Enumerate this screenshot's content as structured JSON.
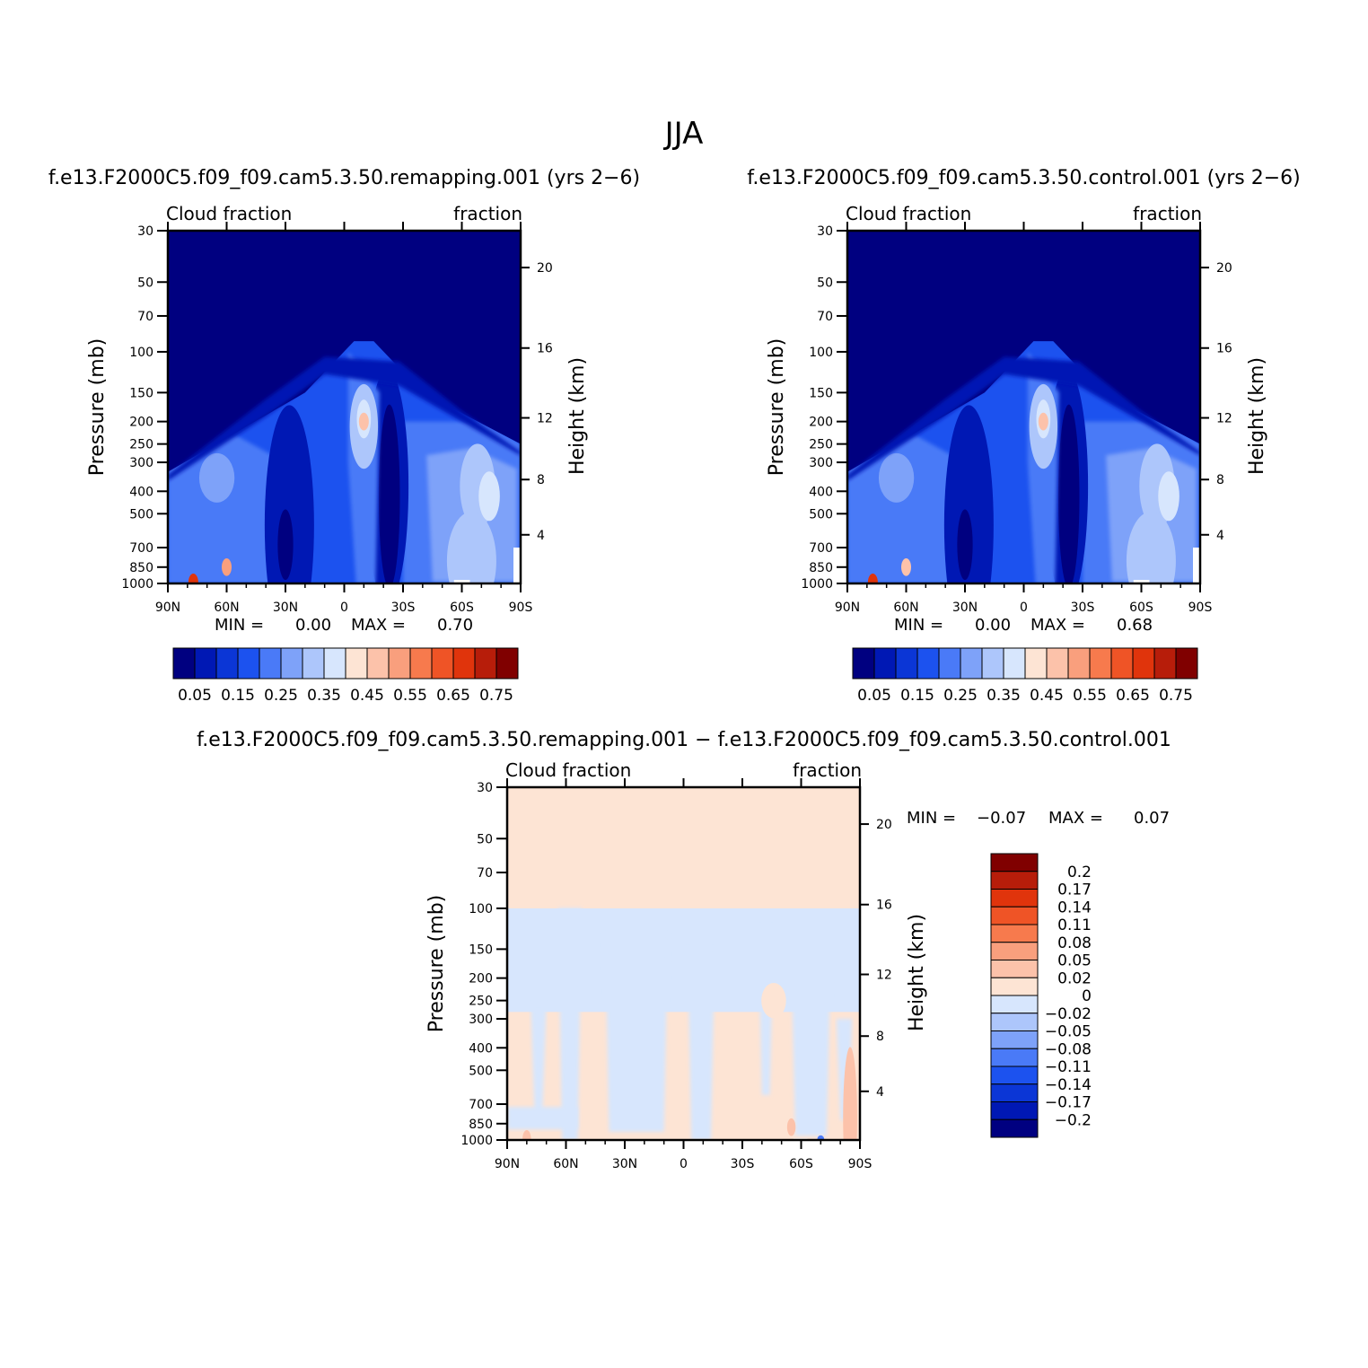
{
  "title": "JJA",
  "colors": {
    "abs": [
      "#000080",
      "#0018b4",
      "#0b36d6",
      "#1c52ef",
      "#4a7af7",
      "#7ea2f9",
      "#adc6fb",
      "#d7e6fd",
      "#fde4d4",
      "#fcc2aa",
      "#f99f7d",
      "#f77a4d",
      "#ef5426",
      "#e0340c",
      "#b71d0a",
      "#800000"
    ],
    "diff": [
      "#800000",
      "#b71d0a",
      "#e0340c",
      "#ef5426",
      "#f77a4d",
      "#f99f7d",
      "#fcc2aa",
      "#fde4d4",
      "#d7e6fd",
      "#adc6fb",
      "#7ea2f9",
      "#4a7af7",
      "#1c52ef",
      "#0b36d6",
      "#0018b4",
      "#000080"
    ]
  },
  "chart_data": [
    {
      "id": "remapping",
      "type": "contour",
      "title": "f.e13.F2000C5.f09_f09.cam5.3.50.remapping.001 (yrs 2−6)",
      "left_label": "Cloud fraction",
      "right_label": "fraction",
      "xlabel": "",
      "ylabel": "Pressure (mb)",
      "y2label": "Height (km)",
      "x_ticks": [
        "90N",
        "60N",
        "30N",
        "0",
        "30S",
        "60S",
        "90S"
      ],
      "y_ticks": [
        "30",
        "50",
        "70",
        "100",
        "150",
        "200",
        "250",
        "300",
        "400",
        "500",
        "700",
        "850",
        "1000"
      ],
      "y2_ticks": [
        "20",
        "16",
        "12",
        "8",
        "4"
      ],
      "min_label": "MIN =",
      "min_value": "0.00",
      "max_label": "MAX =",
      "max_value": "0.70",
      "colorbar_labels": [
        "0.05",
        "0.15",
        "0.25",
        "0.35",
        "0.45",
        "0.55",
        "0.65",
        "0.75"
      ],
      "features": [
        {
          "lat": -10,
          "lev": 200,
          "value": 0.47
        },
        {
          "lat": 60,
          "lev": 850,
          "value": 0.53
        },
        {
          "lat": 77,
          "lev": 990,
          "value": 0.68
        }
      ]
    },
    {
      "id": "control",
      "type": "contour",
      "title": "f.e13.F2000C5.f09_f09.cam5.3.50.control.001 (yrs 2−6)",
      "left_label": "Cloud fraction",
      "right_label": "fraction",
      "xlabel": "",
      "ylabel": "Pressure (mb)",
      "y2label": "Height (km)",
      "x_ticks": [
        "90N",
        "60N",
        "30N",
        "0",
        "30S",
        "60S",
        "90S"
      ],
      "y_ticks": [
        "30",
        "50",
        "70",
        "100",
        "150",
        "200",
        "250",
        "300",
        "400",
        "500",
        "700",
        "850",
        "1000"
      ],
      "y2_ticks": [
        "20",
        "16",
        "12",
        "8",
        "4"
      ],
      "min_label": "MIN =",
      "min_value": "0.00",
      "max_label": "MAX =",
      "max_value": "0.68",
      "colorbar_labels": [
        "0.05",
        "0.15",
        "0.25",
        "0.35",
        "0.45",
        "0.55",
        "0.65",
        "0.75"
      ],
      "features": [
        {
          "lat": -10,
          "lev": 200,
          "value": 0.47
        },
        {
          "lat": 60,
          "lev": 850,
          "value": 0.48
        },
        {
          "lat": 77,
          "lev": 990,
          "value": 0.66
        }
      ]
    },
    {
      "id": "difference",
      "type": "contour",
      "title": "f.e13.F2000C5.f09_f09.cam5.3.50.remapping.001 − f.e13.F2000C5.f09_f09.cam5.3.50.control.001",
      "left_label": "Cloud fraction",
      "right_label": "fraction",
      "xlabel": "",
      "ylabel": "Pressure (mb)",
      "y2label": "Height (km)",
      "x_ticks": [
        "90N",
        "60N",
        "30N",
        "0",
        "30S",
        "60S",
        "90S"
      ],
      "y_ticks": [
        "30",
        "50",
        "70",
        "100",
        "150",
        "200",
        "250",
        "300",
        "400",
        "500",
        "700",
        "850",
        "1000"
      ],
      "y2_ticks": [
        "20",
        "16",
        "12",
        "8",
        "4"
      ],
      "min_label": "MIN =",
      "min_value": "−0.07",
      "max_label": "MAX =",
      "max_value": "0.07",
      "colorbar_labels": [
        "0.2",
        "0.17",
        "0.14",
        "0.11",
        "0.08",
        "0.05",
        "0.02",
        "0",
        "−0.02",
        "−0.05",
        "−0.08",
        "−0.11",
        "−0.14",
        "−0.17",
        "−0.2"
      ]
    }
  ]
}
